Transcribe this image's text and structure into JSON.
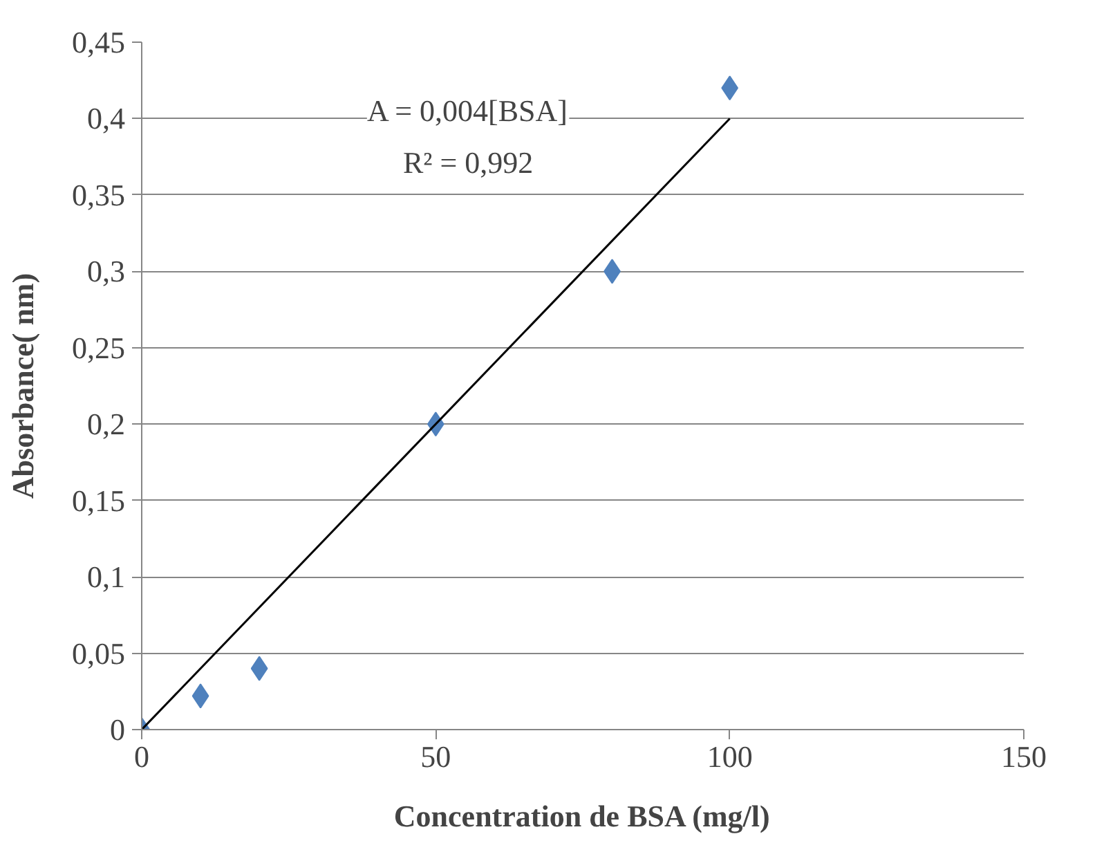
{
  "chart_data": {
    "type": "scatter",
    "xlabel": "Concentration de BSA (mg/l)",
    "ylabel": "Absorbance( nm)",
    "xlim": [
      0,
      150
    ],
    "xticks": [
      0,
      50,
      100,
      150
    ],
    "ylim": [
      0,
      0.45
    ],
    "yticks": [
      0,
      {
        "value": 0.05,
        "label": "0,05"
      },
      {
        "value": 0.1,
        "label": "0,1"
      },
      {
        "value": 0.15,
        "label": "0,15"
      },
      {
        "value": 0.2,
        "label": "0,2"
      },
      {
        "value": 0.25,
        "label": "0,25"
      },
      {
        "value": 0.3,
        "label": "0,3"
      },
      {
        "value": 0.35,
        "label": "0,35"
      },
      {
        "value": 0.4,
        "label": "0,4"
      },
      {
        "value": 0.45,
        "label": "0,45"
      }
    ],
    "grid": "y",
    "annotations": [
      "A = 0,004[BSA]",
      "R² = 0,992"
    ],
    "series": [
      {
        "type": "scatter",
        "marker": "diamond",
        "color": "#4f81bd",
        "x": [
          0,
          10,
          20,
          50,
          80,
          100
        ],
        "values": [
          0,
          0.022,
          0.04,
          0.2,
          0.3,
          0.42
        ]
      },
      {
        "type": "line",
        "marker": "none",
        "line_style": "solid",
        "color": "#000000",
        "x": [
          0,
          100
        ],
        "values": [
          0,
          0.4
        ]
      }
    ]
  }
}
